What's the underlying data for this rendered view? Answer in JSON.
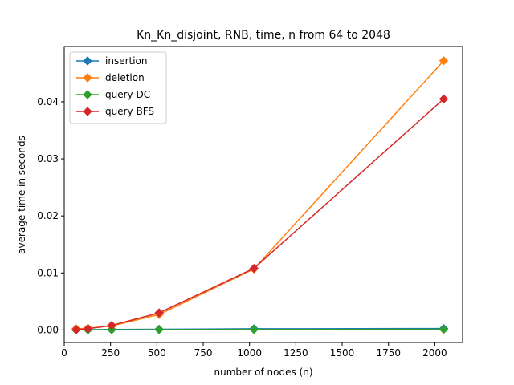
{
  "chart_data": {
    "type": "line",
    "title": "Kn_Kn_disjoint, RNB, time, n from 64 to 2048",
    "xlabel": "number of nodes (n)",
    "ylabel": "average time in seconds",
    "x": [
      64,
      128,
      256,
      512,
      1024,
      2048
    ],
    "xlim": [
      0,
      2150
    ],
    "ylim": [
      -0.0022,
      0.0497
    ],
    "xticks": [
      0,
      250,
      500,
      750,
      1000,
      1250,
      1500,
      1750,
      2000
    ],
    "xtick_labels": [
      "0",
      "250",
      "500",
      "750",
      "1000",
      "1250",
      "1500",
      "1750",
      "2000"
    ],
    "yticks": [
      0.0,
      0.01,
      0.02,
      0.03,
      0.04
    ],
    "ytick_labels": [
      "0.00",
      "0.01",
      "0.02",
      "0.03",
      "0.04"
    ],
    "grid": false,
    "legend_position": "top-left",
    "marker": "diamond",
    "series": [
      {
        "name": "insertion",
        "color": "#1f77b4",
        "values": [
          3e-05,
          5e-05,
          8e-05,
          0.00012,
          0.0002,
          0.00025
        ]
      },
      {
        "name": "deletion",
        "color": "#ff7f0e",
        "values": [
          0.0002,
          0.0003,
          0.0007,
          0.0027,
          0.0107,
          0.0472
        ]
      },
      {
        "name": "query DC",
        "color": "#2ca02c",
        "values": [
          1e-05,
          2e-05,
          3e-05,
          5e-05,
          8e-05,
          0.0001
        ]
      },
      {
        "name": "query BFS",
        "color": "#d62728",
        "values": [
          5e-05,
          0.0002,
          0.0008,
          0.003,
          0.0108,
          0.0405
        ]
      }
    ]
  }
}
